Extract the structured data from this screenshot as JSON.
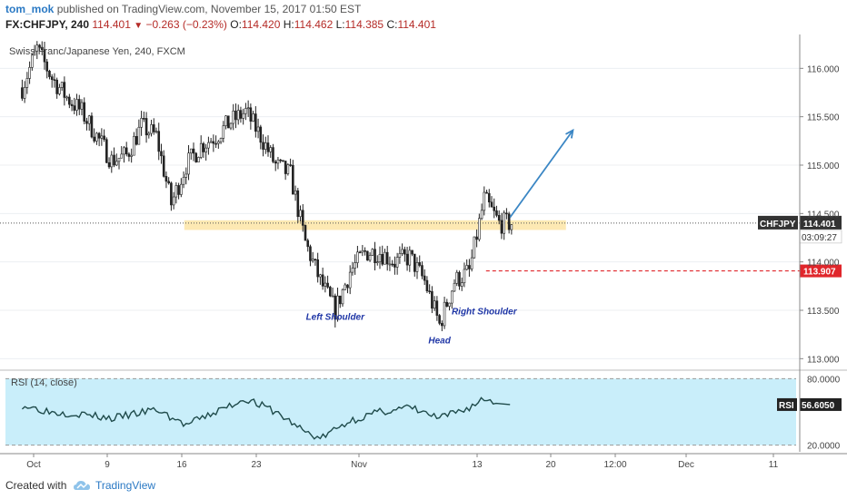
{
  "header": {
    "author": "tom_mok",
    "published_text": "published on TradingView.com, November 15, 2017 01:50 EST",
    "symbol_interval": "FX:CHFJPY, 240",
    "last_price": "114.401",
    "change": "−0.263 (−0.23%)",
    "o_label": "O:",
    "o_value": "114.420",
    "h_label": "H:",
    "h_value": "114.462",
    "l_label": "L:",
    "l_value": "114.385",
    "c_label": "C:",
    "c_value": "114.401"
  },
  "chart_data": [
    {
      "type": "candlestick",
      "title": "Swiss Franc/Japanese Yen, 240, FXCM",
      "ylim": [
        112.9,
        116.35
      ],
      "y_ticks": [
        "116.000",
        "115.500",
        "115.000",
        "114.500",
        "114.000",
        "113.500",
        "113.000"
      ],
      "x_tick_labels": [
        "Oct",
        "9",
        "16",
        "23",
        "Nov",
        "13",
        "20",
        "12:00",
        "Dec",
        "11"
      ],
      "price_path": [
        {
          "date": "2017-10-02",
          "close": 115.8
        },
        {
          "date": "2017-10-03",
          "close": 116.2
        },
        {
          "date": "2017-10-04",
          "close": 115.9
        },
        {
          "date": "2017-10-05",
          "close": 115.7
        },
        {
          "date": "2017-10-06",
          "close": 115.55
        },
        {
          "date": "2017-10-09",
          "close": 115.3
        },
        {
          "date": "2017-10-10",
          "close": 115.05
        },
        {
          "date": "2017-10-11",
          "close": 115.1
        },
        {
          "date": "2017-10-12",
          "close": 115.4
        },
        {
          "date": "2017-10-13",
          "close": 115.3
        },
        {
          "date": "2017-10-16",
          "close": 114.6
        },
        {
          "date": "2017-10-17",
          "close": 115.0
        },
        {
          "date": "2017-10-18",
          "close": 115.2
        },
        {
          "date": "2017-10-19",
          "close": 115.3
        },
        {
          "date": "2017-10-20",
          "close": 115.45
        },
        {
          "date": "2017-10-23",
          "close": 115.55
        },
        {
          "date": "2017-10-24",
          "close": 115.3
        },
        {
          "date": "2017-10-25",
          "close": 115.0
        },
        {
          "date": "2017-10-26",
          "close": 114.9
        },
        {
          "date": "2017-10-27",
          "close": 114.2
        },
        {
          "date": "2017-10-30",
          "close": 113.8
        },
        {
          "date": "2017-10-31",
          "close": 113.5
        },
        {
          "date": "2017-11-01",
          "close": 113.9
        },
        {
          "date": "2017-11-02",
          "close": 114.1
        },
        {
          "date": "2017-11-03",
          "close": 114.1
        },
        {
          "date": "2017-11-06",
          "close": 114.0
        },
        {
          "date": "2017-11-07",
          "close": 114.05
        },
        {
          "date": "2017-11-08",
          "close": 113.8
        },
        {
          "date": "2017-11-09",
          "close": 113.35
        },
        {
          "date": "2017-11-10",
          "close": 113.8
        },
        {
          "date": "2017-11-13",
          "close": 113.9
        },
        {
          "date": "2017-11-14",
          "close": 114.65
        },
        {
          "date": "2017-11-15",
          "close": 114.4
        }
      ],
      "last_price": {
        "label": "CHFJPY",
        "value": "114.401",
        "countdown": "03:09:27"
      },
      "support_zone": [
        114.33,
        114.43
      ],
      "target_level": {
        "value": "113.907"
      },
      "arrow": {
        "from": {
          "date": "2017-11-15",
          "y": 114.46
        },
        "to": {
          "date": "2017-11-20",
          "y": 115.36
        }
      },
      "annotations": [
        {
          "text": "Left Shoulder",
          "date": "2017-10-31",
          "y": 113.4
        },
        {
          "text": "Head",
          "date": "2017-11-09",
          "y": 113.16
        },
        {
          "text": "Right Shoulder",
          "date": "2017-11-14",
          "y": 113.46
        }
      ]
    },
    {
      "type": "line",
      "title": "RSI (14, close)",
      "ylim": [
        14,
        86
      ],
      "y_ticks": [
        "80.0000",
        "20.0000"
      ],
      "band": [
        20,
        80
      ],
      "series": [
        {
          "name": "RSI",
          "x": [
            "2017-10-02",
            "2017-10-04",
            "2017-10-06",
            "2017-10-10",
            "2017-10-13",
            "2017-10-17",
            "2017-10-19",
            "2017-10-23",
            "2017-10-25",
            "2017-10-27",
            "2017-10-30",
            "2017-11-01",
            "2017-11-03",
            "2017-11-07",
            "2017-11-09",
            "2017-11-13",
            "2017-11-14",
            "2017-11-15"
          ],
          "y": [
            56,
            50,
            48,
            44,
            52,
            38,
            50,
            62,
            50,
            32,
            26,
            42,
            50,
            54,
            44,
            54,
            62,
            56.6
          ]
        }
      ],
      "last_value": {
        "label": "RSI",
        "value": "56.6050"
      }
    }
  ],
  "footer": {
    "created_with": "Created with",
    "brand": "TradingView"
  },
  "colors": {
    "candle": "#222222",
    "zone": "#fde9b3",
    "target": "#e0262b",
    "arrow": "#3a86c4",
    "rsi_band": "#c9eefa",
    "rsi_line": "#1f4b4b",
    "annotation": "#1f36a6"
  }
}
